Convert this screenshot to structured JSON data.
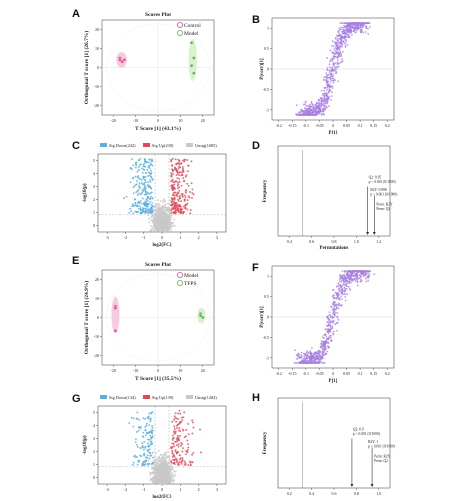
{
  "panel_labels": [
    "A",
    "B",
    "C",
    "D",
    "E",
    "F",
    "G",
    "H"
  ],
  "chart_data": [
    {
      "id": "A",
      "type": "scatter",
      "title": "Scores Plot",
      "xlabel": "T Score [1] (43.1%)",
      "ylabel": "Orthogonal T score [1] (26.7%)",
      "xticks": [
        "-20",
        "-10",
        "0",
        "10",
        "20"
      ],
      "yticks": [
        "-20",
        "-10",
        "0",
        "10",
        "20"
      ],
      "xlim": [
        -25,
        25
      ],
      "ylim": [
        -25,
        25
      ],
      "legend": [
        "Control",
        "Model"
      ],
      "series": [
        {
          "name": "Control",
          "color": "#e0528f",
          "fill": "#f7c4dc",
          "points": [
            [
              -17,
              5
            ],
            [
              -15,
              4
            ],
            [
              -16,
              3
            ],
            [
              -17,
              4
            ]
          ]
        },
        {
          "name": "Model",
          "color": "#5cb85c",
          "fill": "#d6f0c8",
          "points": [
            [
              15,
              13
            ],
            [
              16,
              5
            ],
            [
              15,
              1
            ],
            [
              16,
              -3
            ]
          ]
        }
      ]
    },
    {
      "id": "B",
      "type": "scatter",
      "xlabel": "P[1]",
      "ylabel": "P(corr)[1]",
      "xticks": [
        "-0.2",
        "-0.15",
        "-0.1",
        "-0.05",
        "0",
        "0.05",
        "0.1",
        "0.15",
        "0.2"
      ],
      "yticks": [
        "-1",
        "-0.5",
        "0",
        "0.5",
        "1"
      ],
      "color": "#a57ee0"
    },
    {
      "id": "C",
      "type": "scatter",
      "xlabel": "log2(FC)",
      "ylabel": "-log10(p)",
      "legend": [
        {
          "label": "Sig Down(242)",
          "color": "#5aaee0"
        },
        {
          "label": "Sig Up(230)",
          "color": "#e04a5a"
        },
        {
          "label": "Unsig(1685)",
          "color": "#c8c8c8"
        }
      ],
      "xticks": [
        "-3",
        "-2",
        "-1",
        "0",
        "1",
        "2",
        "3"
      ],
      "yticks": [
        "0",
        "1",
        "2",
        "3",
        "4",
        "5"
      ]
    },
    {
      "id": "D",
      "type": "bar",
      "xlabel": "Permutations",
      "ylabel": "Frequency",
      "xticks": [
        "0.4",
        "0.6",
        "0.8",
        "1.0",
        "1.2"
      ],
      "annotations": [
        "Q2: 0.95\np < 0.001 (0/1000)",
        "R2Y: 0.998\np < 0.001 (0/1000)",
        "Perm: R2Y\nPerm: Q2"
      ]
    },
    {
      "id": "E",
      "type": "scatter",
      "title": "Scores Plot",
      "xlabel": "T Score [1] (35.5%)",
      "ylabel": "Orthogonal T score [1] (24.9%)",
      "xticks": [
        "-20",
        "-10",
        "0",
        "10",
        "20"
      ],
      "yticks": [
        "-20",
        "-10",
        "0",
        "10",
        "20"
      ],
      "xlim": [
        -25,
        25
      ],
      "ylim": [
        -25,
        25
      ],
      "legend": [
        "Model",
        "TFPS"
      ],
      "series": [
        {
          "name": "Model",
          "color": "#e0528f",
          "fill": "#f7c4dc",
          "points": [
            [
              -19,
              6
            ],
            [
              -19,
              5
            ],
            [
              -19,
              -7
            ]
          ]
        },
        {
          "name": "TFPS",
          "color": "#5cb85c",
          "fill": "#d6f0c8",
          "points": [
            [
              19,
              2
            ],
            [
              20,
              0
            ],
            [
              19,
              1
            ]
          ]
        }
      ]
    },
    {
      "id": "F",
      "type": "scatter",
      "xlabel": "P[1]",
      "ylabel": "P(corr)[1]",
      "xticks": [
        "-0.2",
        "-0.15",
        "-0.1",
        "-0.05",
        "0",
        "0.05",
        "0.1",
        "0.15",
        "0.2"
      ],
      "yticks": [
        "-1",
        "-0.5",
        "0",
        "0.5",
        "1"
      ],
      "color": "#a57ee0"
    },
    {
      "id": "G",
      "type": "scatter",
      "xlabel": "log2(FC)",
      "ylabel": "-log10(p)",
      "legend": [
        {
          "label": "Sig Down(134)",
          "color": "#5aaee0"
        },
        {
          "label": "Sig Up(139)",
          "color": "#e04a5a"
        },
        {
          "label": "Unsig(1284)",
          "color": "#c8c8c8"
        }
      ],
      "xticks": [
        "-3",
        "-2",
        "-1",
        "0",
        "1",
        "2",
        "3"
      ],
      "yticks": [
        "0",
        "1",
        "2",
        "3",
        "4",
        "5"
      ]
    },
    {
      "id": "H",
      "type": "bar",
      "xlabel": "Permutations",
      "ylabel": "Frequency",
      "xticks": [
        "0.2",
        "0.4",
        "0.6",
        "0.8",
        "1.0"
      ],
      "annotations": [
        "Q2: 0.9\np < 0.001 (0/1000)",
        "R2Y: 1\np < 0.001 (0/1000)",
        "Perm: R2Y\nPerm: Q2"
      ]
    }
  ]
}
